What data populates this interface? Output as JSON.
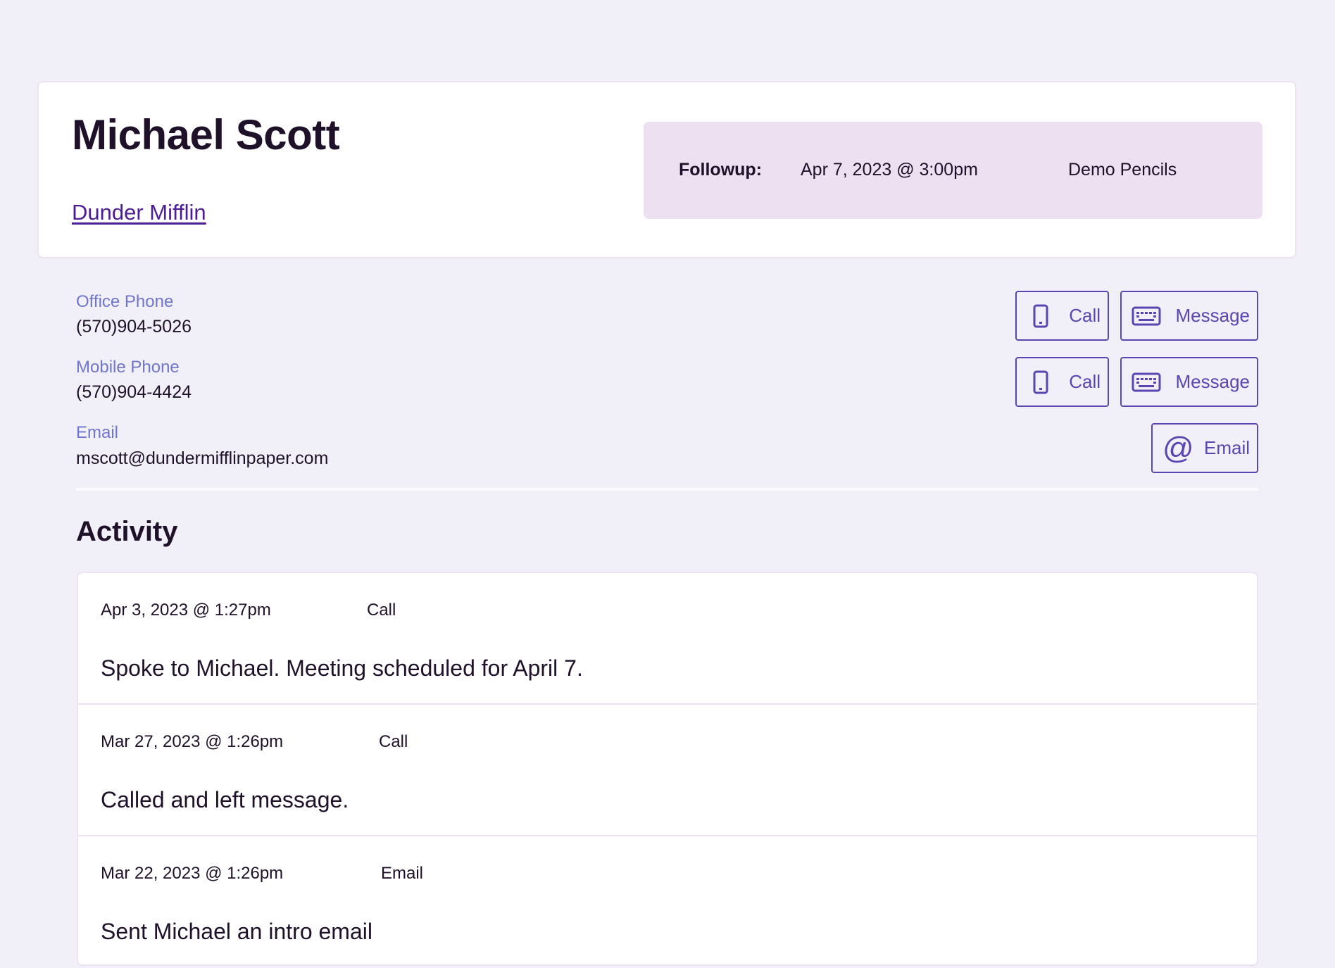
{
  "contact": {
    "name": "Michael Scott",
    "company": "Dunder Mifflin",
    "followup": {
      "label": "Followup:",
      "date": "Apr 7, 2023 @ 3:00pm",
      "subject": "Demo Pencils"
    }
  },
  "details": [
    {
      "label": "Office Phone",
      "value": "(570)904-5026",
      "actions": [
        "Call",
        "Message"
      ]
    },
    {
      "label": "Mobile Phone",
      "value": "(570)904-4424",
      "actions": [
        "Call",
        "Message"
      ]
    },
    {
      "label": "Email",
      "value": "mscott@dundermifflinpaper.com",
      "actions": [
        "Email"
      ]
    }
  ],
  "activity": {
    "heading": "Activity",
    "items": [
      {
        "date": "Apr 3, 2023 @ 1:27pm",
        "type": "Call",
        "note": "Spoke to Michael. Meeting scheduled for April 7."
      },
      {
        "date": "Mar 27, 2023 @ 1:26pm",
        "type": "Call",
        "note": "Called and left message."
      },
      {
        "date": "Mar 22, 2023 @ 1:26pm",
        "type": "Email",
        "note": "Sent Michael an intro email"
      }
    ]
  },
  "colors": {
    "background": "#f1eff8",
    "accent": "#5b45b0",
    "label": "#6f76cc",
    "followup_bg": "#ede0f1",
    "link": "#4c1d95"
  },
  "icons": {
    "call": "phone-icon",
    "message": "keyboard-icon",
    "email": "at-sign-icon"
  }
}
